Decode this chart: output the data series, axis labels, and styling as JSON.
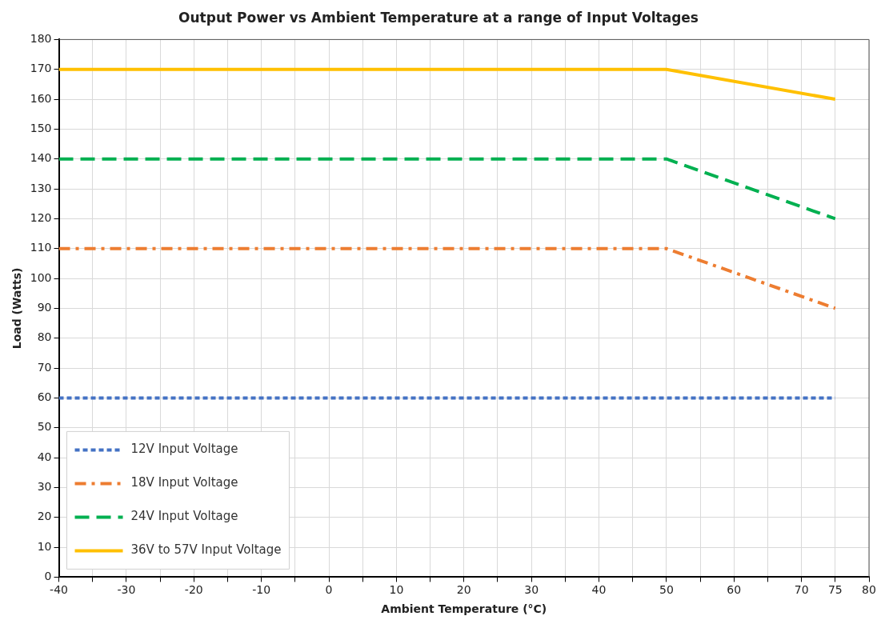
{
  "chart_data": {
    "type": "line",
    "title": "Output Power vs Ambient Temperature at a range of Input Voltages",
    "xlabel": "Ambient Temperature (°C)",
    "ylabel": "Load (Watts)",
    "series": [
      {
        "name": "12V Input Voltage",
        "color": "#4472c4",
        "line_style": "dotted",
        "x": [
          -40,
          50,
          75
        ],
        "values": [
          60,
          60,
          60
        ]
      },
      {
        "name": "18V Input Voltage",
        "color": "#ed7d31",
        "line_style": "dashdot",
        "x": [
          -40,
          50,
          75
        ],
        "values": [
          110,
          110,
          90
        ]
      },
      {
        "name": "24V Input Voltage",
        "color": "#00b050",
        "line_style": "dashed",
        "x": [
          -40,
          50,
          75
        ],
        "values": [
          140,
          140,
          120
        ]
      },
      {
        "name": "36V to 57V Input Voltage",
        "color": "#ffc000",
        "line_style": "solid",
        "x": [
          -40,
          50,
          75
        ],
        "values": [
          170,
          170,
          160
        ]
      }
    ],
    "xlim": [
      -40,
      80
    ],
    "xticks": [
      -40,
      {
        "value": -35,
        "label": null
      },
      -30,
      {
        "value": -25,
        "label": null
      },
      -20,
      {
        "value": -15,
        "label": null
      },
      -10,
      {
        "value": -5,
        "label": null
      },
      0,
      {
        "value": 5,
        "label": null
      },
      10,
      {
        "value": 15,
        "label": null
      },
      20,
      {
        "value": 25,
        "label": null
      },
      30,
      {
        "value": 35,
        "label": null
      },
      40,
      {
        "value": 45,
        "label": null
      },
      50,
      {
        "value": 55,
        "label": null
      },
      60,
      {
        "value": 65,
        "label": null
      },
      70,
      75,
      80
    ],
    "ylim": [
      0,
      180
    ],
    "yticks": [
      0,
      10,
      20,
      30,
      40,
      50,
      60,
      70,
      80,
      90,
      100,
      110,
      120,
      130,
      140,
      150,
      160,
      170,
      180
    ],
    "grid": true,
    "legend": "bottom left",
    "marker": "none"
  }
}
